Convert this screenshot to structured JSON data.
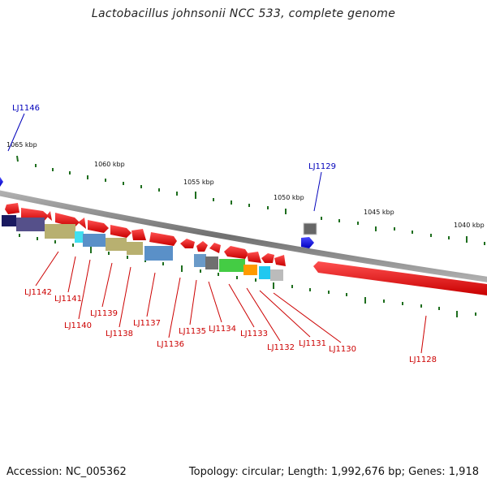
{
  "title": "Lactobacillus johnsonii NCC 533, complete genome",
  "accession": "Accession: NC_005362",
  "topology": "Topology: circular; Length: 1,992,676 bp; Genes: 1,918",
  "colors": {
    "forward_gene": "#ff0000",
    "reverse_gene": "#0000ff",
    "backbone": "#888888",
    "tick": "#1e6e1e",
    "label_forward": "#cc0000",
    "label_reverse": "#0000bb"
  },
  "scale_labels": [
    "1065 kbp",
    "1060 kbp",
    "1055 kbp",
    "1050 kbp",
    "1045 kbp",
    "1040 kbp"
  ],
  "gene_labels_top": [
    "LJ1146",
    "LJ1129"
  ],
  "gene_labels_bottom": [
    "LJ1142",
    "LJ1141",
    "LJ1140",
    "LJ1139",
    "LJ1138",
    "LJ1137",
    "LJ1136",
    "LJ1135",
    "LJ1134",
    "LJ1133",
    "LJ1132",
    "LJ1131",
    "LJ1130",
    "LJ1128"
  ]
}
